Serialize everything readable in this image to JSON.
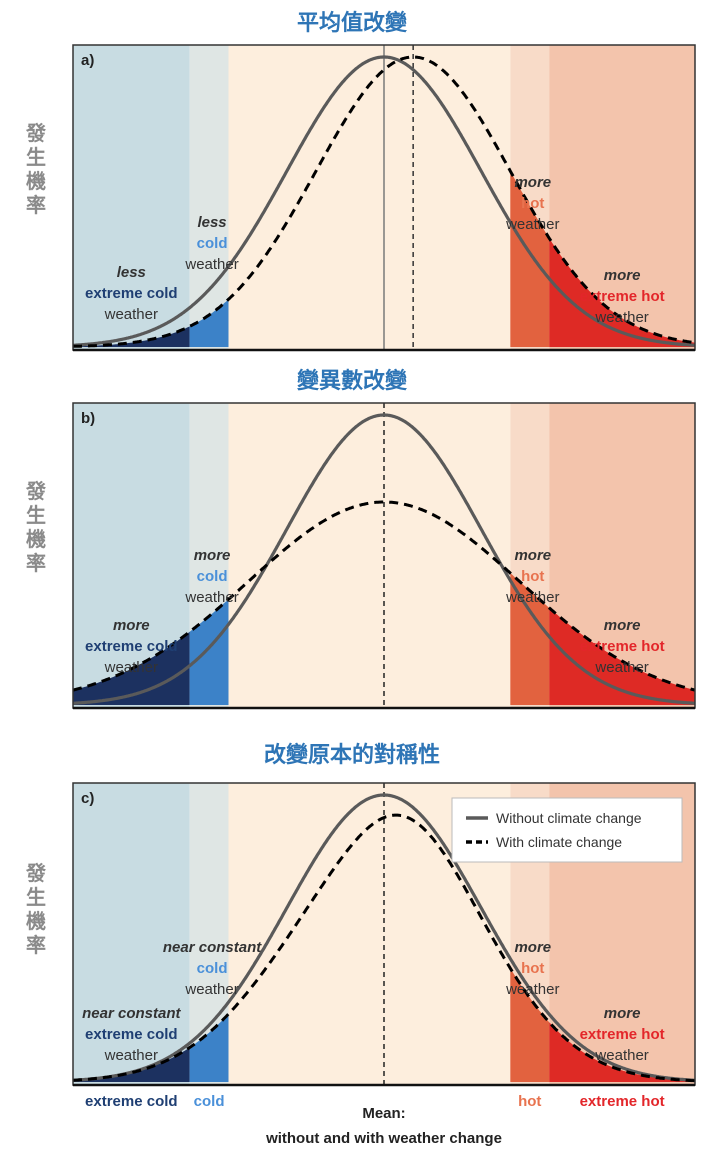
{
  "chart_data": [
    {
      "type": "line",
      "panel_label": "a)",
      "title": "平均值改變",
      "ylabel": "發生機率",
      "series": [
        {
          "kind": "without",
          "mean": 0,
          "sd": 1,
          "skew": 0,
          "peak": 1.0
        },
        {
          "kind": "with",
          "mean": 0.3,
          "sd": 1,
          "skew": 0,
          "peak": 1.0
        }
      ],
      "annotations": [
        {
          "zone": "extreme_cold",
          "lines": [
            "less",
            "extreme cold",
            "weather"
          ]
        },
        {
          "zone": "cold",
          "lines": [
            "less",
            "cold",
            "weather"
          ]
        },
        {
          "zone": "hot",
          "lines": [
            "more",
            "hot",
            "weather"
          ]
        },
        {
          "zone": "extreme_hot",
          "lines": [
            "more",
            "extreme hot",
            "weather"
          ]
        }
      ]
    },
    {
      "type": "line",
      "panel_label": "b)",
      "title": "變異數改變",
      "ylabel": "發生機率",
      "series": [
        {
          "kind": "without",
          "mean": 0,
          "sd": 1,
          "skew": 0,
          "peak": 1.0
        },
        {
          "kind": "with",
          "mean": 0,
          "sd": 1.4,
          "skew": 0,
          "peak": 0.7
        }
      ],
      "annotations": [
        {
          "zone": "extreme_cold",
          "lines": [
            "more",
            "extreme cold",
            "weather"
          ]
        },
        {
          "zone": "cold",
          "lines": [
            "more",
            "cold",
            "weather"
          ]
        },
        {
          "zone": "hot",
          "lines": [
            "more",
            "hot",
            "weather"
          ]
        },
        {
          "zone": "extreme_hot",
          "lines": [
            "more",
            "extreme hot",
            "weather"
          ]
        }
      ]
    },
    {
      "type": "line",
      "panel_label": "c)",
      "title": "改變原本的對稱性",
      "ylabel": "發生機率",
      "series": [
        {
          "kind": "without",
          "mean": 0,
          "sd": 1,
          "skew": 0,
          "peak": 1.0
        },
        {
          "kind": "with",
          "mean": -0.12,
          "sd": 1,
          "skew": 0.22,
          "peak": 0.93
        }
      ],
      "annotations": [
        {
          "zone": "extreme_cold",
          "lines": [
            "near constant",
            "extreme cold",
            "weather"
          ]
        },
        {
          "zone": "cold",
          "lines": [
            "near constant",
            "cold",
            "weather"
          ]
        },
        {
          "zone": "hot",
          "lines": [
            "more",
            "hot",
            "weather"
          ]
        },
        {
          "zone": "extreme_hot",
          "lines": [
            "more",
            "extreme hot",
            "weather"
          ]
        }
      ],
      "legend": {
        "position": "top-right",
        "items": [
          {
            "style": "solid",
            "label": "Without climate change"
          },
          {
            "style": "dashed",
            "label": "With climate change"
          }
        ]
      },
      "x_category_labels": [
        "extreme cold",
        "cold",
        "hot",
        "extreme hot"
      ],
      "x_mean_label": [
        "Mean:",
        "without and with weather change"
      ]
    }
  ],
  "zones": {
    "x_range": [
      -3.2,
      3.2
    ],
    "extreme_cold": {
      "to": -2.0,
      "bg": "#c8dce2"
    },
    "cold": {
      "from": -2.0,
      "to": -1.6,
      "bg": "#dfe6e4"
    },
    "normal": {
      "from": -1.6,
      "to": 1.3,
      "bg": "#fdeedd"
    },
    "hot": {
      "from": 1.3,
      "to": 1.7,
      "bg": "#f8dbc8"
    },
    "extreme_hot": {
      "from": 1.7,
      "bg": "#f3c4ac"
    }
  },
  "colors": {
    "curve_without": "#5a5a5a",
    "curve_with": "#000000",
    "extreme_cold_text": "#1f3f73",
    "cold_text": "#4a90d9",
    "hot_text": "#e8734f",
    "extreme_hot_text": "#e3262a",
    "extreme_cold_fill": "#1c3160",
    "cold_fill": "#3c82c8",
    "hot_fill": "#e2623f",
    "extreme_hot_fill": "#de2a25"
  }
}
